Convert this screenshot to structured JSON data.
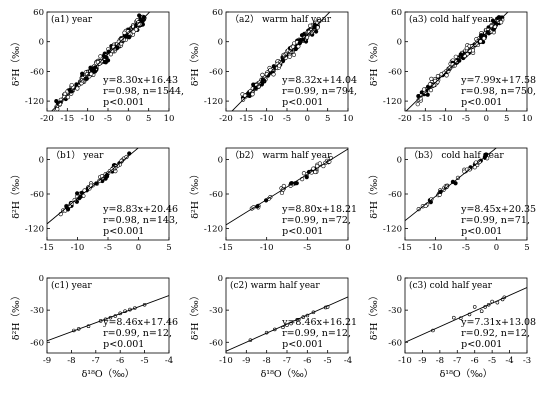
{
  "x_axis_label": "δ¹⁸O（‰）",
  "y_axis_label": "δ²H（‰）",
  "chart_data": [
    {
      "id": "a1",
      "type": "scatter",
      "label": "(a1)  year",
      "equation": "y=8.30x+16.43",
      "stats": "r=0.98,  n=1544,",
      "pvalue": "p<0.001",
      "slope": 8.3,
      "intercept": 16.43,
      "xlim": [
        -20,
        10
      ],
      "ylim": [
        -140,
        60
      ],
      "xticks": [
        -20,
        -15,
        -10,
        -5,
        0,
        5,
        10
      ],
      "yticks": [
        -120,
        -60,
        0,
        60
      ],
      "x_range": [
        -18,
        4
      ],
      "n_points": 260,
      "scatter_sd": 5,
      "show_xticklabels": true,
      "show_xlabel": false
    },
    {
      "id": "a2",
      "type": "scatter",
      "label": "（a2）  warm half year",
      "equation": "y=8.32x+14.04",
      "stats": "r=0.99,  n=794,",
      "pvalue": "p<0.001",
      "slope": 8.32,
      "intercept": 14.04,
      "xlim": [
        -20,
        10
      ],
      "ylim": [
        -140,
        60
      ],
      "xticks": [
        -20,
        -15,
        -10,
        -5,
        0,
        5,
        10
      ],
      "yticks": [
        -120,
        -60,
        0,
        60
      ],
      "x_range": [
        -16,
        3
      ],
      "n_points": 200,
      "scatter_sd": 4.5,
      "show_xticklabels": true,
      "show_xlabel": false
    },
    {
      "id": "a3",
      "type": "scatter",
      "label": "(a3)  cold half year",
      "equation": "y=7.99x+17.58",
      "stats": "r=0.98,  n=750,",
      "pvalue": "p<0.001",
      "slope": 7.99,
      "intercept": 17.58,
      "xlim": [
        -20,
        10
      ],
      "ylim": [
        -140,
        60
      ],
      "xticks": [
        -20,
        -15,
        -10,
        -5,
        0,
        5,
        10
      ],
      "yticks": [
        -120,
        -60,
        0,
        60
      ],
      "x_range": [
        -17,
        4
      ],
      "n_points": 200,
      "scatter_sd": 5,
      "show_xticklabels": true,
      "show_xlabel": false
    },
    {
      "id": "b1",
      "type": "scatter",
      "label": "（b1）  year",
      "equation": "y=8.83x+20.46",
      "stats": "r=0.98,  n=143,",
      "pvalue": "p<0.001",
      "slope": 8.83,
      "intercept": 20.46,
      "xlim": [
        -15,
        5
      ],
      "ylim": [
        -140,
        20
      ],
      "xticks": [
        -15,
        -10,
        -5,
        0,
        5
      ],
      "yticks": [
        -120,
        -60,
        0
      ],
      "x_range": [
        -13,
        -1.5
      ],
      "n_points": 70,
      "scatter_sd": 3,
      "show_xticklabels": true,
      "show_xlabel": false
    },
    {
      "id": "b2",
      "type": "scatter",
      "label": "（b2）  warm half year",
      "equation": "y=8.80x+18.21",
      "stats": "r=0.99,  n=72,",
      "pvalue": "p<0.001",
      "slope": 8.8,
      "intercept": 18.21,
      "xlim": [
        -15,
        0
      ],
      "ylim": [
        -140,
        20
      ],
      "xticks": [
        -15,
        -10,
        -5,
        0
      ],
      "yticks": [
        -120,
        -60,
        0
      ],
      "x_range": [
        -12.5,
        -2
      ],
      "n_points": 45,
      "scatter_sd": 2.5,
      "show_xticklabels": true,
      "show_xlabel": false
    },
    {
      "id": "b3",
      "type": "scatter",
      "label": "（b3）  cold half year",
      "equation": "y=8.45x+20.35",
      "stats": "r=0.99,  n=71,",
      "pvalue": "p<0.001",
      "slope": 8.45,
      "intercept": 20.35,
      "xlim": [
        -15,
        5
      ],
      "ylim": [
        -140,
        20
      ],
      "xticks": [
        -15,
        -10,
        -5,
        0,
        5
      ],
      "yticks": [
        -120,
        -60,
        0
      ],
      "x_range": [
        -13,
        -1.5
      ],
      "n_points": 45,
      "scatter_sd": 2.5,
      "show_xticklabels": true,
      "show_xlabel": false
    },
    {
      "id": "c1",
      "type": "scatter",
      "label": "(c1)  year",
      "equation": "y=8.46x+17.46",
      "stats": "r=0.99,  n=12,",
      "pvalue": "p<0.001",
      "slope": 8.46,
      "intercept": 17.46,
      "xlim": [
        -9,
        -4
      ],
      "ylim": [
        -70,
        0
      ],
      "xticks": [
        -9,
        -8,
        -7,
        -6,
        -5,
        -4
      ],
      "yticks": [
        -60,
        -30,
        0
      ],
      "points": [
        [
          -7.9,
          -49
        ],
        [
          -7.7,
          -47.5
        ],
        [
          -7.3,
          -45
        ],
        [
          -6.8,
          -40
        ],
        [
          -6.6,
          -38.5
        ],
        [
          -6.4,
          -37
        ],
        [
          -6.2,
          -35.5
        ],
        [
          -6.0,
          -33
        ],
        [
          -5.8,
          -31
        ],
        [
          -5.6,
          -29.5
        ],
        [
          -5.4,
          -28
        ],
        [
          -5.0,
          -25
        ]
      ],
      "show_xticklabels": true,
      "show_xlabel": true
    },
    {
      "id": "c2",
      "type": "scatter",
      "label": "(c2)  warm half year",
      "equation": "y=8.46x+16.21",
      "stats": "r=0.99,  n=12,",
      "pvalue": "p<0.001",
      "slope": 8.46,
      "intercept": 16.21,
      "xlim": [
        -10,
        -4
      ],
      "ylim": [
        -70,
        0
      ],
      "xticks": [
        -10,
        -9,
        -8,
        -7,
        -6,
        -5,
        -4
      ],
      "yticks": [
        -60,
        -30,
        0
      ],
      "points": [
        [
          -8.8,
          -58
        ],
        [
          -8.0,
          -51
        ],
        [
          -7.6,
          -48
        ],
        [
          -7.2,
          -46
        ],
        [
          -7.0,
          -44
        ],
        [
          -6.8,
          -42.5
        ],
        [
          -6.5,
          -39
        ],
        [
          -6.2,
          -36.5
        ],
        [
          -6.0,
          -35
        ],
        [
          -5.7,
          -32
        ],
        [
          -5.1,
          -27.5
        ],
        [
          -5.0,
          -27
        ]
      ],
      "show_xticklabels": true,
      "show_xlabel": true
    },
    {
      "id": "c3",
      "type": "scatter",
      "label": "(c3)  cold half year",
      "equation": "y=7.31x+13.08",
      "stats": "r=0.92,  n=12,",
      "pvalue": "p<0.001",
      "slope": 7.31,
      "intercept": 13.08,
      "xlim": [
        -10,
        -3
      ],
      "ylim": [
        -70,
        0
      ],
      "xticks": [
        -10,
        -9,
        -8,
        -7,
        -6,
        -5,
        -4,
        -3
      ],
      "yticks": [
        -60,
        -30,
        0
      ],
      "points": [
        [
          -8.4,
          -49
        ],
        [
          -7.2,
          -37
        ],
        [
          -6.8,
          -37.5
        ],
        [
          -6.3,
          -34
        ],
        [
          -6.0,
          -27
        ],
        [
          -5.6,
          -31
        ],
        [
          -5.4,
          -27
        ],
        [
          -5.2,
          -25
        ],
        [
          -5.0,
          -22
        ],
        [
          -4.7,
          -23
        ],
        [
          -4.4,
          -20
        ],
        [
          -4.3,
          -18
        ]
      ],
      "show_xticklabels": true,
      "show_xlabel": true
    }
  ]
}
